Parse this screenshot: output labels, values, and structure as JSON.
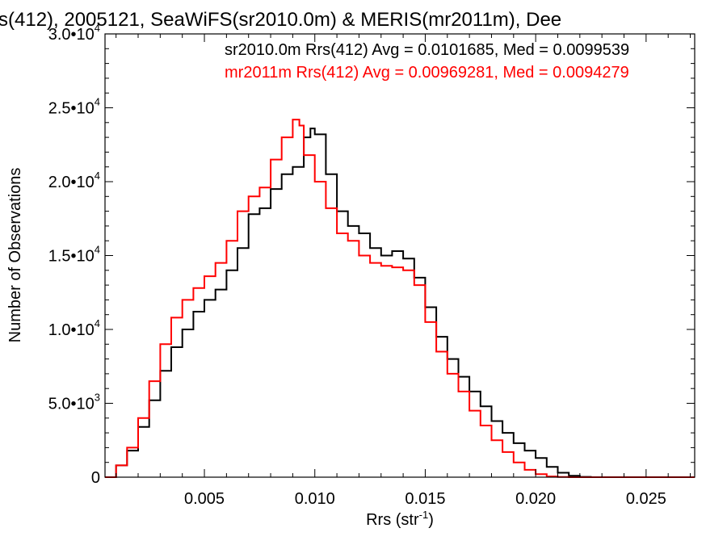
{
  "chart_data": {
    "type": "line",
    "title": "s(412), 2005121, SeaWiFS(sr2010.0m) & MERIS(mr2011m), Dee",
    "xlabel": "Rrs (str",
    "xlabel_sup": "-1",
    "xlabel_close": ")",
    "ylabel": "Number of Observations",
    "xlim": [
      0.0005,
      0.0272
    ],
    "ylim": [
      0,
      30000
    ],
    "x_ticks": [
      {
        "value": 0.005,
        "label": "0.005"
      },
      {
        "value": 0.01,
        "label": "0.010"
      },
      {
        "value": 0.015,
        "label": "0.015"
      },
      {
        "value": 0.02,
        "label": "0.020"
      },
      {
        "value": 0.025,
        "label": "0.025"
      }
    ],
    "y_ticks": [
      {
        "value": 0,
        "mant": "0",
        "exp": ""
      },
      {
        "value": 5000,
        "mant": "5.0•10",
        "exp": "3"
      },
      {
        "value": 10000,
        "mant": "1.0•10",
        "exp": "4"
      },
      {
        "value": 15000,
        "mant": "1.5•10",
        "exp": "4"
      },
      {
        "value": 20000,
        "mant": "2.0•10",
        "exp": "4"
      },
      {
        "value": 25000,
        "mant": "2.5•10",
        "exp": "4"
      },
      {
        "value": 30000,
        "mant": "3.0•10",
        "exp": "4"
      }
    ],
    "annotations": [
      {
        "text": "sr2010.0m Rrs(412) Avg = 0.0101685, Med = 0.0099539",
        "color": "#000000"
      },
      {
        "text": "mr2011m Rrs(412) Avg = 0.00969281, Med = 0.0094279",
        "color": "#ff0000"
      }
    ],
    "series": [
      {
        "color": "#000000",
        "x": [
          0.0005,
          0.001,
          0.0015,
          0.002,
          0.0025,
          0.003,
          0.0035,
          0.004,
          0.0045,
          0.005,
          0.0055,
          0.006,
          0.0065,
          0.007,
          0.0075,
          0.008,
          0.0085,
          0.009,
          0.0095,
          0.0098,
          0.01,
          0.0105,
          0.011,
          0.0115,
          0.012,
          0.0125,
          0.013,
          0.0135,
          0.014,
          0.0145,
          0.015,
          0.0155,
          0.016,
          0.0165,
          0.017,
          0.0175,
          0.018,
          0.0185,
          0.019,
          0.0195,
          0.02,
          0.0205,
          0.021,
          0.0215,
          0.022,
          0.0225,
          0.023,
          0.024,
          0.025,
          0.026,
          0.0272
        ],
        "y": [
          0,
          800,
          1800,
          3400,
          5200,
          7200,
          8800,
          10000,
          11200,
          12000,
          12700,
          14000,
          15500,
          17800,
          18200,
          19500,
          20500,
          21000,
          23000,
          23600,
          23200,
          20500,
          18000,
          17000,
          16500,
          15500,
          15000,
          15300,
          14800,
          13500,
          11500,
          9500,
          8000,
          6800,
          5800,
          4800,
          3800,
          3000,
          2300,
          1800,
          1300,
          700,
          300,
          100,
          20,
          0,
          0,
          0,
          0,
          0,
          0
        ]
      },
      {
        "color": "#ff0000",
        "x": [
          0.0005,
          0.001,
          0.0015,
          0.002,
          0.0025,
          0.003,
          0.0035,
          0.004,
          0.0045,
          0.005,
          0.0055,
          0.006,
          0.0065,
          0.007,
          0.0075,
          0.008,
          0.0085,
          0.009,
          0.0093,
          0.0095,
          0.01,
          0.0105,
          0.011,
          0.0115,
          0.012,
          0.0125,
          0.013,
          0.0135,
          0.014,
          0.0145,
          0.015,
          0.0155,
          0.016,
          0.0165,
          0.017,
          0.0175,
          0.018,
          0.0185,
          0.019,
          0.0195,
          0.02,
          0.0205,
          0.021,
          0.0215,
          0.022,
          0.023,
          0.024,
          0.025,
          0.026,
          0.0272
        ],
        "y": [
          0,
          800,
          2000,
          4000,
          6500,
          9000,
          10800,
          12000,
          12800,
          13600,
          14500,
          16000,
          18000,
          19000,
          19600,
          21500,
          23000,
          24200,
          23800,
          21800,
          20000,
          18200,
          16500,
          16000,
          15000,
          14500,
          14300,
          14200,
          14000,
          13000,
          10500,
          8500,
          7000,
          5800,
          4500,
          3500,
          2500,
          1700,
          1000,
          500,
          200,
          50,
          10,
          0,
          0,
          0,
          0,
          0,
          0,
          0
        ]
      }
    ]
  }
}
